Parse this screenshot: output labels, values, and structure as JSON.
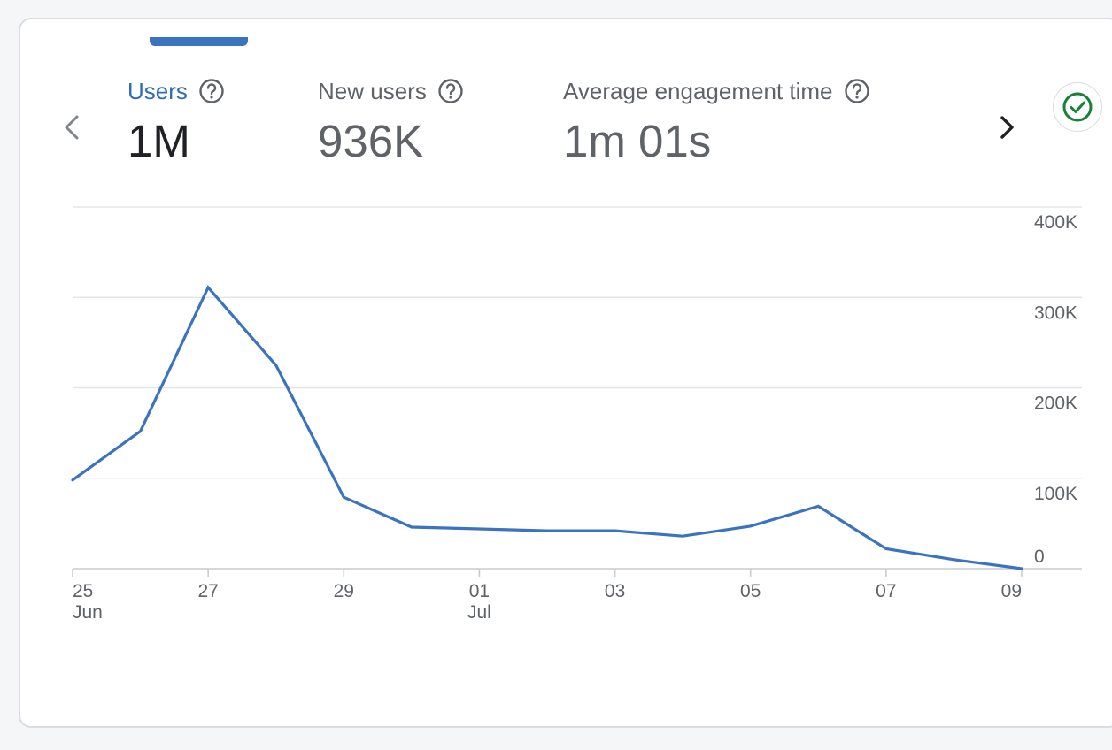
{
  "metrics": [
    {
      "label": "Users",
      "value": "1M",
      "active": true
    },
    {
      "label": "New users",
      "value": "936K",
      "active": false
    },
    {
      "label": "Average engagement time",
      "value": "1m 01s",
      "active": false
    }
  ],
  "icons": {
    "prev": "chevron-left-icon",
    "next": "chevron-right-icon",
    "help": "help-circle-icon",
    "status": "check-circle-icon"
  },
  "colors": {
    "accent": "#3a73be",
    "status_green": "#188038"
  },
  "chart_data": {
    "type": "line",
    "title": "",
    "xlabel": "",
    "ylabel": "",
    "ylim": [
      0,
      400000
    ],
    "y_ticks": [
      {
        "value": 0,
        "label": "0"
      },
      {
        "value": 100000,
        "label": "100K"
      },
      {
        "value": 200000,
        "label": "200K"
      },
      {
        "value": 300000,
        "label": "300K"
      },
      {
        "value": 400000,
        "label": "400K"
      }
    ],
    "x_ticks": [
      {
        "index": 0,
        "day": "25",
        "month": "Jun"
      },
      {
        "index": 2,
        "day": "27",
        "month": ""
      },
      {
        "index": 4,
        "day": "29",
        "month": ""
      },
      {
        "index": 6,
        "day": "01",
        "month": "Jul"
      },
      {
        "index": 8,
        "day": "03",
        "month": ""
      },
      {
        "index": 10,
        "day": "05",
        "month": ""
      },
      {
        "index": 12,
        "day": "07",
        "month": ""
      },
      {
        "index": 14,
        "day": "09",
        "month": ""
      }
    ],
    "series": [
      {
        "name": "Users",
        "dates": [
          "25 Jun",
          "26 Jun",
          "27 Jun",
          "28 Jun",
          "29 Jun",
          "30 Jun",
          "01 Jul",
          "02 Jul",
          "03 Jul",
          "04 Jul",
          "05 Jul",
          "06 Jul",
          "07 Jul",
          "08 Jul",
          "09 Jul"
        ],
        "values": [
          98000,
          152000,
          311000,
          225000,
          79000,
          46000,
          44000,
          42000,
          42000,
          36000,
          47000,
          69000,
          22000,
          10000,
          0
        ]
      }
    ]
  }
}
